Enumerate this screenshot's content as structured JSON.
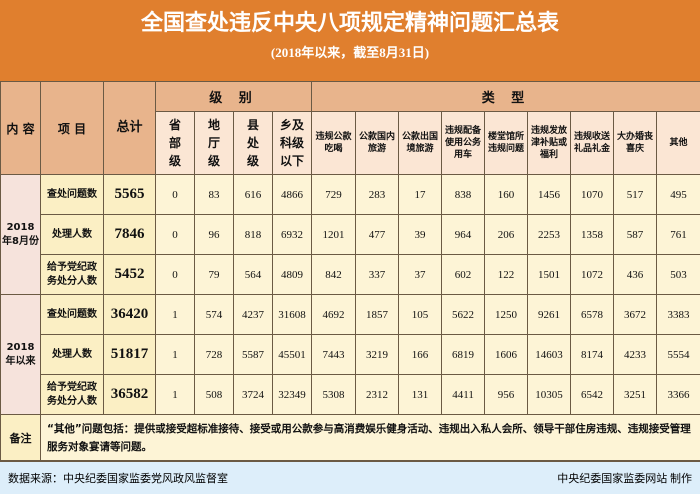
{
  "header": {
    "title": "全国查处违反中央八项规定精神问题汇总表",
    "subtitle": "(2018年以来，截至8月31日)"
  },
  "columns": {
    "content": "内 容",
    "item": "项 目",
    "total": "总计",
    "level_group": "级 别",
    "type_group": "类 型",
    "levels": [
      "省部级",
      "地厅级",
      "县处级",
      "乡及科级以下"
    ],
    "types": [
      "违规公款吃喝",
      "公款国内旅游",
      "公款出国境旅游",
      "违规配备使用公务用车",
      "楼堂馆所违规问题",
      "违规发放津补贴或福利",
      "违规收送礼品礼金",
      "大办婚丧喜庆",
      "其他"
    ]
  },
  "groups": [
    {
      "label": "2018年8月份",
      "rows": [
        {
          "item": "查处问题数",
          "total": "5565",
          "values": [
            "0",
            "83",
            "616",
            "4866",
            "729",
            "283",
            "17",
            "838",
            "160",
            "1456",
            "1070",
            "517",
            "495"
          ]
        },
        {
          "item": "处理人数",
          "total": "7846",
          "values": [
            "0",
            "96",
            "818",
            "6932",
            "1201",
            "477",
            "39",
            "964",
            "206",
            "2253",
            "1358",
            "587",
            "761"
          ]
        },
        {
          "item": "给予党纪政务处分人数",
          "total": "5452",
          "values": [
            "0",
            "79",
            "564",
            "4809",
            "842",
            "337",
            "37",
            "602",
            "122",
            "1501",
            "1072",
            "436",
            "503"
          ]
        }
      ]
    },
    {
      "label": "2018年以来",
      "rows": [
        {
          "item": "查处问题数",
          "total": "36420",
          "values": [
            "1",
            "574",
            "4237",
            "31608",
            "4692",
            "1857",
            "105",
            "5622",
            "1250",
            "9261",
            "6578",
            "3672",
            "3383"
          ]
        },
        {
          "item": "处理人数",
          "total": "51817",
          "values": [
            "1",
            "728",
            "5587",
            "45501",
            "7443",
            "3219",
            "166",
            "6819",
            "1606",
            "14603",
            "8174",
            "4233",
            "5554"
          ]
        },
        {
          "item": "给予党纪政务处分人数",
          "total": "36582",
          "values": [
            "1",
            "508",
            "3724",
            "32349",
            "5308",
            "2312",
            "131",
            "4411",
            "956",
            "10305",
            "6542",
            "3251",
            "3366"
          ]
        }
      ]
    }
  ],
  "note": {
    "label": "备注",
    "text": "“其他”问题包括：提供或接受超标准接待、接受或用公款参与高消费娱乐健身活动、违规出入私人会所、领导干部住房违规、违规接受管理服务对象宴请等问题。"
  },
  "footer": {
    "source": "数据来源：中央纪委国家监委党风政风监督室",
    "credit": "中央纪委国家监委网站  制作"
  }
}
